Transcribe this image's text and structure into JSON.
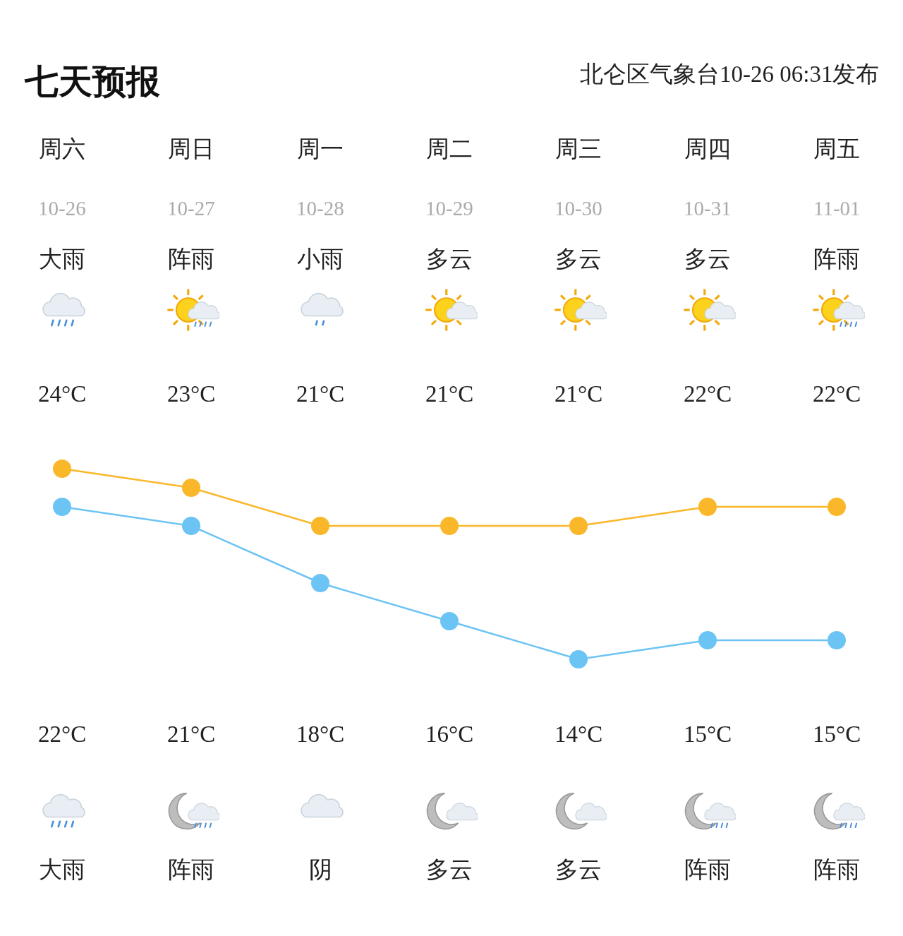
{
  "chart_data": {
    "type": "line",
    "title": "七天预报",
    "subtitle": "北仑区气象台10-26 06:31发布",
    "categories": [
      "周六",
      "周日",
      "周一",
      "周二",
      "周三",
      "周四",
      "周五"
    ],
    "series": [
      {
        "color": "#fbb72a",
        "values": [
          24,
          23,
          21,
          21,
          21,
          22,
          22
        ],
        "value_labels": [
          "24°C",
          "23°C",
          "21°C",
          "21°C",
          "21°C",
          "22°C",
          "22°C"
        ]
      },
      {
        "color": "#6cc4f4",
        "values": [
          22,
          21,
          18,
          16,
          14,
          15,
          15
        ],
        "value_labels": [
          "22°C",
          "21°C",
          "18°C",
          "16°C",
          "14°C",
          "15°C",
          "15°C"
        ]
      }
    ],
    "annotations": [
      "10-26",
      "10-27",
      "10-28",
      "10-29",
      "10-30",
      "10-31",
      "11-01",
      "大雨",
      "阵雨",
      "小雨",
      "多云",
      "多云",
      "多云",
      "阵雨",
      "大雨",
      "阵雨",
      "阴",
      "多云",
      "多云",
      "阵雨",
      "阵雨"
    ],
    "marker": "circle",
    "line_style": "solid",
    "grid": false,
    "tick_labels": "x"
  }
}
